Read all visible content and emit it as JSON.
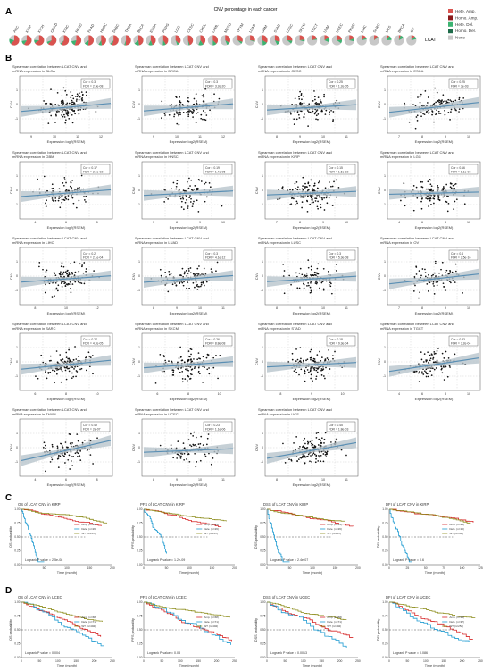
{
  "panels": {
    "A": {
      "letter": "A",
      "title": "CNV percentage in each cancer",
      "gene": "LCAT",
      "cancers": [
        "ACC",
        "KIRP",
        "KICH",
        "OGKD",
        "KIRC",
        "READ",
        "PAAD",
        "HNSC",
        "DLBC",
        "THCA",
        "BLCA",
        "ESCA",
        "PCPG",
        "LGG",
        "CESC",
        "CHOL",
        "LAML",
        "MESO",
        "THYM",
        "LUAD",
        "GBM",
        "STAD",
        "LUSC",
        "SKCM",
        "TGCT",
        "UVM",
        "UCEC",
        "PRAD",
        "LIHC",
        "SARC",
        "UCS",
        "BRCA",
        "OV"
      ],
      "legend": [
        {
          "label": "Hete. Amp.",
          "color": "#d9534f"
        },
        {
          "label": "Homo. Amp.",
          "color": "#8b1a1a"
        },
        {
          "label": "Hete. Del.",
          "color": "#3cb371"
        },
        {
          "label": "Homo. Del.",
          "color": "#1e6b4a"
        },
        {
          "label": "None",
          "color": "#c8c8c8"
        }
      ]
    },
    "B": {
      "letter": "B",
      "xlabel": "Expression log2(RSEM)",
      "ylabel": "CNV",
      "plots": [
        {
          "title_line1": "Spearman correlation between LCAT CNV and",
          "title_line2": "mRNA expression in BLCA",
          "stat1": "Cor = 0.3",
          "stat2": "FDR = 2.3e-08",
          "slope": 0.18,
          "seed": 11,
          "xticks": [
            "9",
            "10",
            "11",
            "12"
          ]
        },
        {
          "title_line1": "Spearman correlation between LCAT CNV and",
          "title_line2": "mRNA expression in BRCA",
          "stat1": "Cor = 0.3",
          "stat2": "FDR = 3.2e-20",
          "slope": 0.16,
          "seed": 12,
          "xticks": [
            "9",
            "10",
            "11",
            "12"
          ]
        },
        {
          "title_line1": "Spearman correlation between LCAT CNV and",
          "title_line2": "mRNA expression in CESC",
          "stat1": "Cor = 0.25",
          "stat2": "FDR = 1.2e-05",
          "slope": 0.12,
          "seed": 13,
          "xticks": [
            "8",
            "9",
            "10",
            "11"
          ]
        },
        {
          "title_line1": "Spearman correlation between LCAT CNV and",
          "title_line2": "mRNA expression in ESCA",
          "stat1": "Cor = 0.25",
          "stat2": "FDR = 3e-03",
          "slope": 0.22,
          "seed": 14,
          "xticks": [
            "7",
            "8",
            "9",
            "10"
          ]
        },
        {
          "title_line1": "Spearman correlation between LCAT CNV and",
          "title_line2": "mRNA expression in GBM",
          "stat1": "Cor = 0.17",
          "stat2": "FDR = 2.6e-02",
          "slope": 0.15,
          "seed": 15,
          "xticks": [
            "4",
            "6",
            "8"
          ]
        },
        {
          "title_line1": "Spearman correlation between LCAT CNV and",
          "title_line2": "mRNA expression in HNSC",
          "stat1": "Cor = 0.19",
          "stat2": "FDR = 1.4e-05",
          "slope": 0.1,
          "seed": 16,
          "xticks": [
            "7",
            "8",
            "9",
            "10"
          ]
        },
        {
          "title_line1": "Spearman correlation between LCAT CNV and",
          "title_line2": "mRNA expression in KIRP",
          "stat1": "Cor = 0.15",
          "stat2": "FDR = 1.6e-02",
          "slope": 0.08,
          "seed": 17,
          "xticks": [
            "7",
            "8",
            "9",
            "10"
          ]
        },
        {
          "title_line1": "Spearman correlation between LCAT CNV and",
          "title_line2": "mRNA expression in LGG",
          "stat1": "Cor = 0.16",
          "stat2": "FDR = 1.1e-03",
          "slope": 0.05,
          "seed": 18,
          "xticks": [
            "4",
            "6",
            "8",
            "10"
          ]
        },
        {
          "title_line1": "Spearman correlation between LCAT CNV and",
          "title_line2": "mRNA expression in LIHC",
          "stat1": "Cor = 0.2",
          "stat2": "FDR = 2.1e-04",
          "slope": 0.14,
          "seed": 19,
          "xticks": [
            "8",
            "10",
            "12"
          ]
        },
        {
          "title_line1": "Spearman correlation between LCAT CNV and",
          "title_line2": "mRNA expression in LUAD",
          "stat1": "Cor = 0.3",
          "stat2": "FDR = 4.1e-12",
          "slope": 0.15,
          "seed": 20,
          "xticks": [
            "8",
            "9",
            "10",
            "11"
          ]
        },
        {
          "title_line1": "Spearman correlation between LCAT CNV and",
          "title_line2": "mRNA expression in LUSC",
          "stat1": "Cor = 0.3",
          "stat2": "FDR = 5.3e-08",
          "slope": 0.12,
          "seed": 21,
          "xticks": [
            "8",
            "9",
            "10",
            "11"
          ]
        },
        {
          "title_line1": "Spearman correlation between LCAT CNV and",
          "title_line2": "mRNA expression in OV",
          "stat1": "Cor = 0.4",
          "stat2": "FDR = 2.5e-16",
          "slope": 0.22,
          "seed": 22,
          "xticks": [
            "7",
            "8",
            "9",
            "10"
          ]
        },
        {
          "title_line1": "Spearman correlation between LCAT CNV and",
          "title_line2": "mRNA expression in SARC",
          "stat1": "Cor = 0.27",
          "stat2": "FDR = 4.2e-05",
          "slope": 0.2,
          "seed": 23,
          "xticks": [
            "6",
            "8",
            "10"
          ]
        },
        {
          "title_line1": "Spearman correlation between LCAT CNV and",
          "title_line2": "mRNA expression in SKCM",
          "stat1": "Cor = 0.26",
          "stat2": "FDR = 8.8e-08",
          "slope": 0.14,
          "seed": 24,
          "xticks": [
            "6",
            "8",
            "10"
          ]
        },
        {
          "title_line1": "Spearman correlation between LCAT CNV and",
          "title_line2": "mRNA expression in STAD",
          "stat1": "Cor = 0.18",
          "stat2": "FDR = 9.3e-04",
          "slope": 0.1,
          "seed": 25,
          "xticks": [
            "8",
            "9",
            "10"
          ]
        },
        {
          "title_line1": "Spearman correlation between LCAT CNV and",
          "title_line2": "mRNA expression in TGCT",
          "stat1": "Cor = 0.33",
          "stat2": "FDR = 3.2e-04",
          "slope": 0.3,
          "seed": 26,
          "xticks": [
            "4",
            "6",
            "8",
            "10"
          ]
        },
        {
          "title_line1": "Spearman correlation between LCAT CNV and",
          "title_line2": "mRNA expression in THYM",
          "stat1": "Cor = 0.49",
          "stat2": "FDR = 2e-07",
          "slope": 0.45,
          "seed": 27,
          "xticks": [
            "4",
            "6",
            "8"
          ]
        },
        {
          "title_line1": "Spearman correlation between LCAT CNV and",
          "title_line2": "mRNA expression in UCEC",
          "stat1": "Cor = 0.23",
          "stat2": "FDR = 1.1e-06",
          "slope": 0.08,
          "seed": 28,
          "xticks": [
            "8",
            "9",
            "10",
            "11"
          ]
        },
        {
          "title_line1": "Spearman correlation between LCAT CNV and",
          "title_line2": "mRNA expression in UCS",
          "stat1": "Cor = 0.45",
          "stat2": "FDR = 1.8e-03",
          "slope": 0.35,
          "seed": 29,
          "xticks": [
            "8",
            "9",
            "10",
            "11"
          ]
        }
      ]
    },
    "C": {
      "letter": "C",
      "ylabels": [
        "OS probability",
        "PFS probability",
        "DSS probability",
        "DFI probability"
      ],
      "xlabel": "Time (month)",
      "plots": [
        {
          "title": "OS of LCAT CNV in KIRP",
          "pvalue": "Logrank P value = 2.5e-08",
          "legend": [
            "Amp. (n=44)",
            "Dele. (n=26)",
            "WT (n=207)"
          ],
          "xticks": [
            "0",
            "50",
            "100",
            "150",
            "200"
          ],
          "seed": 31
        },
        {
          "title": "PFS of LCAT CNV in KIRP",
          "pvalue": "Logrank P value = 1.2e-09",
          "legend": [
            "Amp. (n=44)",
            "Dele. (n=26)",
            "WT (n=207)"
          ],
          "xticks": [
            "0",
            "50",
            "100",
            "150",
            "200"
          ],
          "seed": 32
        },
        {
          "title": "DSS of LCAT CNV in KIRP",
          "pvalue": "Logrank P value = 2.4e-07",
          "legend": [
            "Amp. (n=44)",
            "Dele. (n=26)",
            "WT (n=207)"
          ],
          "xticks": [
            "0",
            "50",
            "100",
            "150",
            "200"
          ],
          "seed": 33
        },
        {
          "title": "DFI of LCAT CNV in KIRP",
          "pvalue": "Logrank P value = 0.6",
          "legend": [
            "Amp. (n=24)",
            "Dele. (n=16)",
            "WT (n=130)"
          ],
          "xticks": [
            "0",
            "25",
            "50",
            "75",
            "100",
            "125"
          ],
          "seed": 34
        }
      ]
    },
    "D": {
      "letter": "D",
      "ylabels": [
        "OS probability",
        "PFS probability",
        "DSS probability",
        "DFI probability"
      ],
      "xlabel": "Time (month)",
      "plots": [
        {
          "title": "OS of LCAT CNV in UCEC",
          "pvalue": "Logrank P value = 0.004",
          "legend": [
            "Amp. (n=68)",
            "Dele. (n=71)",
            "WT (n=402)"
          ],
          "xticks": [
            "0",
            "50",
            "100",
            "150",
            "200",
            "250"
          ],
          "seed": 41
        },
        {
          "title": "PFS of LCAT CNV in UCEC",
          "pvalue": "Logrank P value = 0.03",
          "legend": [
            "Amp. (n=68)",
            "Dele. (n=71)",
            "WT (n=402)"
          ],
          "xticks": [
            "0",
            "50",
            "100",
            "150",
            "200",
            "250"
          ],
          "seed": 42
        },
        {
          "title": "DSS of LCAT CNV in UCEC",
          "pvalue": "Logrank P value = 0.0013",
          "legend": [
            "Amp. (n=68)",
            "Dele. (n=71)",
            "WT (n=402)"
          ],
          "xticks": [
            "0",
            "50",
            "100",
            "150",
            "200",
            "250"
          ],
          "seed": 43
        },
        {
          "title": "DFI of LCAT CNV in UCEC",
          "pvalue": "Logrank P value = 0.086",
          "legend": [
            "Amp. (n=39)",
            "Dele. (n=37)",
            "WT (n=252)"
          ],
          "xticks": [
            "0",
            "50",
            "100",
            "150",
            "200",
            "250"
          ],
          "seed": 44
        }
      ]
    }
  },
  "colors": {
    "amp": "#d62728",
    "dele": "#1f9bd1",
    "wt": "#8c8c1a",
    "fit_line": "#5a8fb4",
    "fit_band": "#b8c4cc",
    "point": "#111111"
  }
}
